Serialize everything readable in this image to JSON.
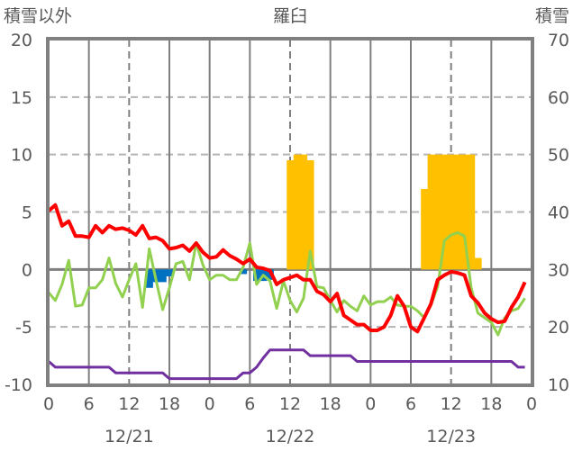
{
  "chart_data": {
    "type": "line",
    "title": "羅臼",
    "ylabel_left": "積雪以外",
    "ylabel_right": "積雪",
    "ylim_left": [
      -10,
      20
    ],
    "ylim_right": [
      10,
      70
    ],
    "yticks_left": [
      "20",
      "15",
      "10",
      "5",
      "0",
      "-5",
      "-10"
    ],
    "yticks_right": [
      "70",
      "60",
      "50",
      "40",
      "30",
      "20",
      "10"
    ],
    "xlim_hours": [
      0,
      72
    ],
    "xticks": [
      {
        "h": 0,
        "label": "0"
      },
      {
        "h": 6,
        "label": "6"
      },
      {
        "h": 12,
        "label": "12"
      },
      {
        "h": 18,
        "label": "18"
      },
      {
        "h": 24,
        "label": "0"
      },
      {
        "h": 30,
        "label": "6"
      },
      {
        "h": 36,
        "label": "12"
      },
      {
        "h": 42,
        "label": "18"
      },
      {
        "h": 48,
        "label": "0"
      },
      {
        "h": 54,
        "label": "6"
      },
      {
        "h": 60,
        "label": "12"
      },
      {
        "h": 66,
        "label": "18"
      },
      {
        "h": 72,
        "label": "0"
      }
    ],
    "date_labels": [
      {
        "h": 12,
        "label": "12/21"
      },
      {
        "h": 36,
        "label": "12/22"
      },
      {
        "h": 60,
        "label": "12/23"
      }
    ],
    "grid": true,
    "series": [
      {
        "name": "red",
        "color": "#ff0000",
        "axis": "left",
        "values": [
          5.1,
          5.6,
          3.8,
          4.2,
          2.9,
          2.9,
          2.8,
          3.8,
          3.2,
          3.8,
          3.5,
          3.6,
          3.4,
          3.0,
          3.8,
          2.7,
          2.8,
          2.5,
          1.8,
          1.9,
          2.1,
          1.6,
          2.3,
          1.5,
          1.0,
          1.1,
          1.7,
          1.2,
          0.9,
          0.5,
          0.9,
          0.2,
          0.1,
          -0.1,
          -1.3,
          -0.9,
          -0.7,
          -0.5,
          -0.9,
          -0.9,
          -1.9,
          -2.2,
          -2.8,
          -2.1,
          -4.0,
          -4.4,
          -4.8,
          -4.8,
          -5.3,
          -5.3,
          -5.0,
          -4.0,
          -2.3,
          -3.2,
          -5.0,
          -5.4,
          -4.2,
          -3.0,
          -0.9,
          -0.5,
          -0.2,
          -0.3,
          -0.5,
          -2.3,
          -2.9,
          -3.8,
          -4.3,
          -4.6,
          -4.5,
          -3.3,
          -2.4,
          -1.1
        ]
      },
      {
        "name": "green",
        "color": "#92d050",
        "axis": "left",
        "values": [
          -2.0,
          -2.7,
          -1.3,
          0.8,
          -3.2,
          -3.1,
          -1.6,
          -1.6,
          -0.9,
          1.0,
          -1.2,
          -2.4,
          -0.9,
          0.5,
          -3.3,
          1.8,
          -0.9,
          -3.5,
          -1.6,
          0.5,
          0.7,
          -0.9,
          2.3,
          0.4,
          -0.9,
          -0.5,
          -0.5,
          -0.9,
          -0.9,
          0.2,
          2.3,
          -1.3,
          -0.5,
          -1.0,
          -3.4,
          -1.0,
          -2.7,
          -3.7,
          -2.5,
          1.6,
          -1.5,
          -1.6,
          -2.7,
          -3.7,
          -2.7,
          -3.2,
          -3.6,
          -2.3,
          -3.1,
          -2.8,
          -2.8,
          -2.4,
          -3.1,
          -3.2,
          -3.2,
          -3.6,
          -4.2,
          -3.1,
          -1.5,
          2.5,
          3.0,
          3.2,
          2.9,
          -1.6,
          -3.8,
          -4.2,
          -4.6,
          -5.7,
          -4.2,
          -3.6,
          -3.4,
          -2.5
        ]
      },
      {
        "name": "purple",
        "color": "#7030a0",
        "axis": "left",
        "values": [
          -8,
          -8.5,
          -8.5,
          -8.5,
          -8.5,
          -8.5,
          -8.5,
          -8.5,
          -8.5,
          -8.5,
          -9,
          -9,
          -9,
          -9,
          -9,
          -9,
          -9,
          -9,
          -9.5,
          -9.5,
          -9.5,
          -9.5,
          -9.5,
          -9.5,
          -9.5,
          -9.5,
          -9.5,
          -9.5,
          -9.5,
          -9,
          -9,
          -8.5,
          -7.7,
          -7,
          -7,
          -7,
          -7,
          -7,
          -7,
          -7.5,
          -7.5,
          -7.5,
          -7.5,
          -7.5,
          -7.5,
          -7.5,
          -8,
          -8,
          -8,
          -8,
          -8,
          -8,
          -8,
          -8,
          -8,
          -8,
          -8,
          -8,
          -8,
          -8,
          -8,
          -8,
          -8,
          -8,
          -8,
          -8,
          -8,
          -8,
          -8,
          -8,
          -8.5,
          -8.5
        ]
      }
    ],
    "bars": [
      {
        "name": "blue",
        "color": "#0070c0",
        "axis": "left",
        "points": [
          {
            "h": 15,
            "v": -1.6
          },
          {
            "h": 16,
            "v": -1.1
          },
          {
            "h": 17,
            "v": -1.1
          },
          {
            "h": 18,
            "v": -0.6
          },
          {
            "h": 29,
            "v": -0.4
          },
          {
            "h": 31,
            "v": -1.0
          },
          {
            "h": 32,
            "v": -1.0
          },
          {
            "h": 33,
            "v": -0.9
          }
        ]
      },
      {
        "name": "yellow",
        "color": "#ffc000",
        "axis": "right",
        "base": 30,
        "points": [
          {
            "h": 36,
            "v": 49
          },
          {
            "h": 37,
            "v": 50
          },
          {
            "h": 38,
            "v": 50
          },
          {
            "h": 39,
            "v": 49
          },
          {
            "h": 56,
            "v": 44
          },
          {
            "h": 57,
            "v": 50
          },
          {
            "h": 58,
            "v": 50
          },
          {
            "h": 59,
            "v": 50
          },
          {
            "h": 60,
            "v": 50
          },
          {
            "h": 61,
            "v": 50
          },
          {
            "h": 62,
            "v": 50
          },
          {
            "h": 63,
            "v": 50
          },
          {
            "h": 64,
            "v": 32
          }
        ]
      }
    ]
  }
}
